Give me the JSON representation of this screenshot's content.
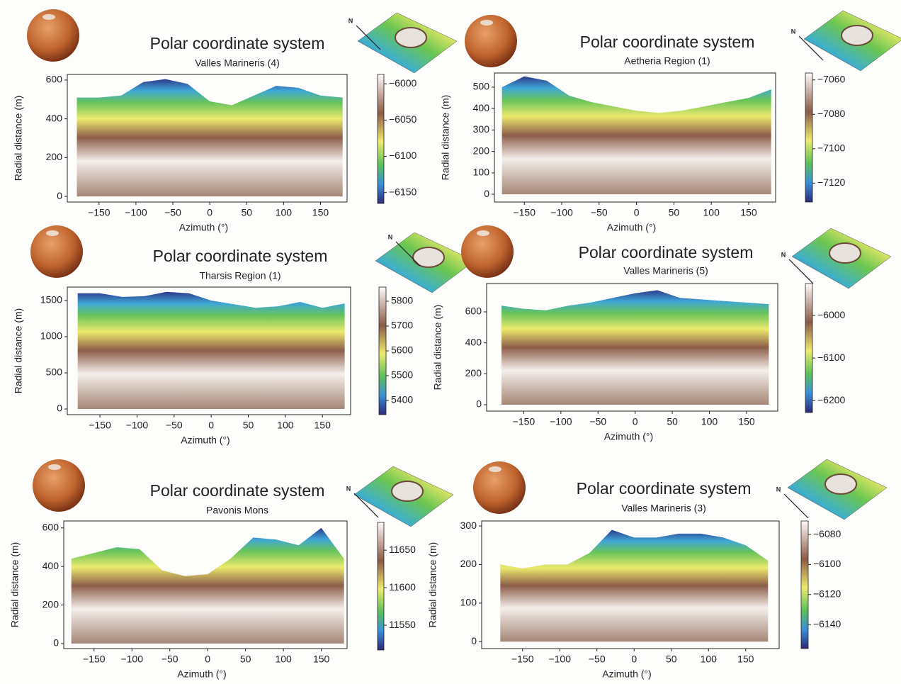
{
  "chart_data": [
    {
      "type": "polar-profile",
      "title": "Polar coordinate system",
      "subtitle": "Valles Marineris (4)",
      "x_label": "Azimuth (°)",
      "y_label": "Radial distance (m)",
      "north_label": "N",
      "x": [
        -180,
        -150,
        -120,
        -90,
        -60,
        -30,
        0,
        30,
        60,
        90,
        120,
        150,
        180
      ],
      "values": [
        510,
        510,
        520,
        590,
        605,
        580,
        490,
        470,
        520,
        570,
        560,
        520,
        510
      ],
      "xlim": [
        -193,
        186
      ],
      "xticks": [
        {
          "value": -150,
          "label": "−150"
        },
        {
          "value": -100,
          "label": "−100"
        },
        {
          "value": -50,
          "label": "−50"
        },
        0,
        50,
        100,
        150
      ],
      "ylim": [
        -29,
        629
      ],
      "yticks": [
        0,
        200,
        400,
        600
      ],
      "clim": [
        -6165,
        -5987
      ],
      "cticks": [
        {
          "value": -6000,
          "label": "−6000"
        },
        {
          "value": -6050,
          "label": "−6050"
        },
        {
          "value": -6100,
          "label": "−6100"
        },
        {
          "value": -6150,
          "label": "−6150"
        }
      ]
    },
    {
      "type": "polar-profile",
      "title": "Polar coordinate system",
      "subtitle": "Aetheria Region (1)",
      "x_label": "Azimuth (°)",
      "y_label": "Radial distance (m)",
      "north_label": "N",
      "x": [
        -180,
        -150,
        -120,
        -90,
        -60,
        -30,
        0,
        30,
        60,
        90,
        120,
        150,
        180
      ],
      "values": [
        500,
        550,
        530,
        460,
        430,
        410,
        390,
        380,
        390,
        410,
        430,
        450,
        490
      ],
      "xlim": [
        -190,
        186
      ],
      "xticks": [
        {
          "value": -150,
          "label": "−150"
        },
        {
          "value": -100,
          "label": "−100"
        },
        {
          "value": -50,
          "label": "−50"
        },
        0,
        50,
        100,
        150
      ],
      "ylim": [
        -36,
        566
      ],
      "yticks": [
        0,
        100,
        200,
        300,
        400,
        500
      ],
      "clim": [
        -7131,
        -7056
      ],
      "cticks": [
        {
          "value": -7060,
          "label": "−7060"
        },
        {
          "value": -7080,
          "label": "−7080"
        },
        {
          "value": -7100,
          "label": "−7100"
        },
        {
          "value": -7120,
          "label": "−7120"
        }
      ]
    },
    {
      "type": "polar-profile",
      "title": "Polar coordinate system",
      "subtitle": "Tharsis Region (1)",
      "x_label": "Azimuth (°)",
      "y_label": "Radial distance (m)",
      "north_label": "N",
      "x": [
        -180,
        -150,
        -120,
        -90,
        -60,
        -30,
        0,
        30,
        60,
        90,
        120,
        150,
        180
      ],
      "values": [
        1600,
        1600,
        1550,
        1560,
        1620,
        1600,
        1500,
        1450,
        1400,
        1420,
        1480,
        1400,
        1460
      ],
      "xlim": [
        -194,
        188
      ],
      "xticks": [
        {
          "value": -150,
          "label": "−150"
        },
        {
          "value": -100,
          "label": "−100"
        },
        {
          "value": -50,
          "label": "−50"
        },
        0,
        50,
        100,
        150
      ],
      "ylim": [
        -78,
        1686
      ],
      "yticks": [
        0,
        500,
        1000,
        1500
      ],
      "clim": [
        5343,
        5857
      ],
      "cticks": [
        5400,
        5500,
        5600,
        5700,
        5800
      ]
    },
    {
      "type": "polar-profile",
      "title": "Polar coordinate system",
      "subtitle": "Valles Marineris (5)",
      "x_label": "Azimuth (°)",
      "y_label": "Radial distance (m)",
      "north_label": "N",
      "x": [
        -180,
        -150,
        -120,
        -90,
        -60,
        -30,
        0,
        30,
        60,
        90,
        120,
        150,
        180
      ],
      "values": [
        640,
        620,
        610,
        640,
        660,
        690,
        720,
        740,
        690,
        680,
        670,
        660,
        650
      ],
      "xlim": [
        -200,
        192
      ],
      "xticks": [
        {
          "value": -150,
          "label": "−150"
        },
        {
          "value": -100,
          "label": "−100"
        },
        {
          "value": -50,
          "label": "−50"
        },
        0,
        50,
        100,
        150
      ],
      "ylim": [
        -41,
        783
      ],
      "yticks": [
        0,
        200,
        400,
        600
      ],
      "clim": [
        -6228,
        -5925
      ],
      "cticks": [
        {
          "value": -6000,
          "label": "−6000"
        },
        {
          "value": -6100,
          "label": "−6100"
        },
        {
          "value": -6200,
          "label": "−6200"
        }
      ]
    },
    {
      "type": "polar-profile",
      "title": "Polar coordinate system",
      "subtitle": "Pavonis Mons",
      "x_label": "Azimuth (°)",
      "y_label": "Radial distance (m)",
      "north_label": "N",
      "x": [
        -180,
        -150,
        -120,
        -90,
        -60,
        -30,
        0,
        30,
        60,
        90,
        120,
        150,
        180
      ],
      "values": [
        440,
        470,
        500,
        490,
        380,
        350,
        360,
        440,
        550,
        540,
        510,
        600,
        440
      ],
      "xlim": [
        -190,
        184
      ],
      "xticks": [
        {
          "value": -150,
          "label": "−150"
        },
        {
          "value": -100,
          "label": "−100"
        },
        {
          "value": -50,
          "label": "−50"
        },
        0,
        50,
        100,
        150
      ],
      "ylim": [
        -26,
        636
      ],
      "yticks": [
        0,
        200,
        400,
        600
      ],
      "clim": [
        11517,
        11687
      ],
      "cticks": [
        11550,
        11600,
        11650
      ]
    },
    {
      "type": "polar-profile",
      "title": "Polar coordinate system",
      "subtitle": "Valles Marineris (3)",
      "x_label": "Azimuth (°)",
      "y_label": "Radial distance (m)",
      "north_label": "N",
      "x": [
        -180,
        -150,
        -120,
        -90,
        -60,
        -30,
        0,
        30,
        60,
        90,
        120,
        150,
        180
      ],
      "values": [
        200,
        190,
        200,
        200,
        230,
        290,
        270,
        270,
        280,
        280,
        270,
        250,
        210
      ],
      "xlim": [
        -205,
        195
      ],
      "xticks": [
        {
          "value": -150,
          "label": "−150"
        },
        {
          "value": -100,
          "label": "−100"
        },
        {
          "value": -50,
          "label": "−50"
        },
        0,
        50,
        100,
        150
      ],
      "ylim": [
        -18,
        313
      ],
      "yticks": [
        0,
        100,
        200,
        300
      ],
      "clim": [
        -6156,
        -6071
      ],
      "cticks": [
        {
          "value": -6080,
          "label": "−6080"
        },
        {
          "value": -6100,
          "label": "−6100"
        },
        {
          "value": -6120,
          "label": "−6120"
        },
        {
          "value": -6140,
          "label": "−6140"
        }
      ]
    }
  ]
}
